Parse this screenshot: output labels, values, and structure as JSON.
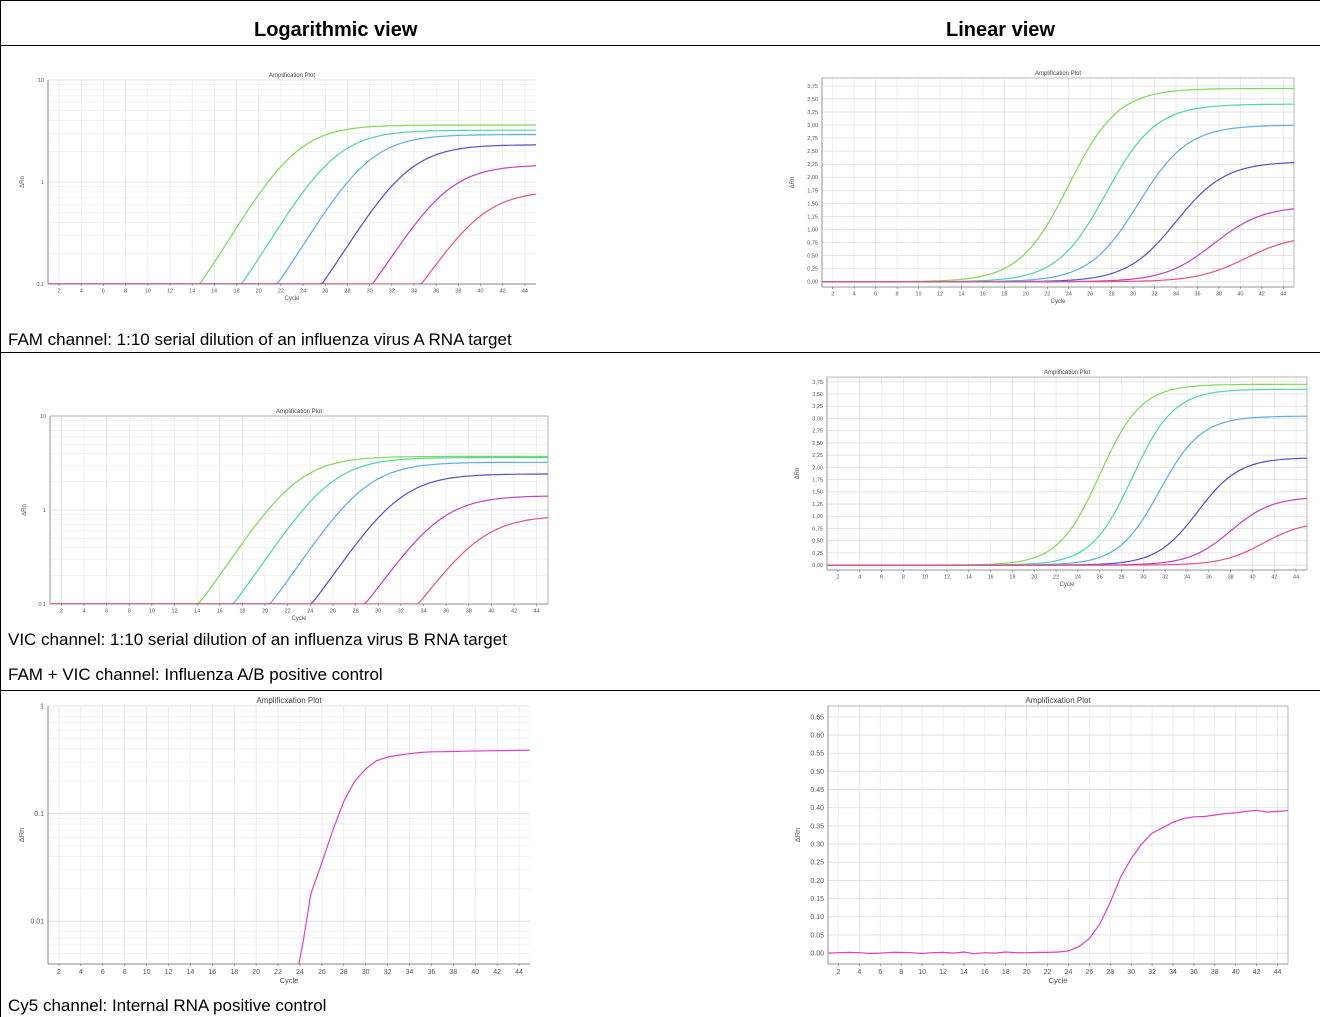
{
  "table": {
    "header_left": "Logarithmic view",
    "header_right": "Linear view",
    "captions": [
      "FAM channel: 1:10 serial dilution of an influenza virus A RNA target",
      "VIC channel: 1:10 serial dilution of an influenza virus B RNA target",
      "FAM + VIC channel: Influenza A/B positive control",
      "Cy5 channel: Internal RNA positive control"
    ]
  },
  "chart_data": [
    {
      "id": "fam_log",
      "type": "line",
      "scale": "log",
      "title": "Amplification Plot",
      "xlabel": "Cycle",
      "ylabel": "ΔRn",
      "xlim": [
        1,
        45
      ],
      "ylim": [
        0.1,
        10
      ],
      "xticks": [
        2,
        4,
        6,
        8,
        10,
        12,
        14,
        16,
        18,
        20,
        22,
        24,
        26,
        28,
        30,
        32,
        34,
        36,
        38,
        40,
        42,
        44
      ],
      "yticks": [
        0.1,
        1,
        10
      ],
      "ytick_labels": [
        "0.1",
        "1",
        "10"
      ],
      "grid": true,
      "series": [
        {
          "color": "#7ed957",
          "midpoint": 23.0,
          "plateau": 3.6,
          "slope": 2.2
        },
        {
          "color": "#4fd6a4",
          "midpoint": 26.5,
          "plateau": 3.2,
          "slope": 2.2
        },
        {
          "color": "#5aaee8",
          "midpoint": 29.5,
          "plateau": 2.9,
          "slope": 2.2
        },
        {
          "color": "#5151c8",
          "midpoint": 33.0,
          "plateau": 2.3,
          "slope": 2.2
        },
        {
          "color": "#c43fc4",
          "midpoint": 36.5,
          "plateau": 1.45,
          "slope": 2.2
        },
        {
          "color": "#e8508a",
          "midpoint": 39.5,
          "plateau": 0.8,
          "slope": 2.2
        }
      ]
    },
    {
      "id": "fam_lin",
      "type": "line",
      "scale": "linear",
      "title": "Amplification Plot",
      "xlabel": "Cycle",
      "ylabel": "ΔRn",
      "xlim": [
        1,
        45
      ],
      "ylim": [
        -0.1,
        3.9
      ],
      "xticks": [
        2,
        4,
        6,
        8,
        10,
        12,
        14,
        16,
        18,
        20,
        22,
        24,
        26,
        28,
        30,
        32,
        34,
        36,
        38,
        40,
        42,
        44
      ],
      "yticks": [
        0,
        0.25,
        0.5,
        0.75,
        1,
        1.25,
        1.5,
        1.75,
        2,
        2.25,
        2.5,
        2.75,
        3,
        3.25,
        3.5,
        3.75
      ],
      "ytick_labels": [
        "0,00",
        "0,25",
        "0,50",
        "0,75",
        "1,00",
        "1,25",
        "1,50",
        "1,75",
        "2,00",
        "2,25",
        "2,50",
        "2,75",
        "3,00",
        "3,25",
        "3,50",
        "3,75"
      ],
      "grid": true,
      "series": [
        {
          "color": "#7ed957",
          "midpoint": 24.0,
          "plateau": 3.7,
          "slope": 2.3
        },
        {
          "color": "#4fd6a4",
          "midpoint": 27.5,
          "plateau": 3.4,
          "slope": 2.3
        },
        {
          "color": "#5aaee8",
          "midpoint": 30.5,
          "plateau": 3.0,
          "slope": 2.3
        },
        {
          "color": "#5151c8",
          "midpoint": 34.0,
          "plateau": 2.3,
          "slope": 2.3
        },
        {
          "color": "#c43fc4",
          "midpoint": 37.5,
          "plateau": 1.45,
          "slope": 2.3
        },
        {
          "color": "#e8508a",
          "midpoint": 40.5,
          "plateau": 0.9,
          "slope": 2.3
        }
      ]
    },
    {
      "id": "vic_log",
      "type": "line",
      "scale": "log",
      "title": "Amplification Plot",
      "xlabel": "Cycle",
      "ylabel": "ΔRn",
      "xlim": [
        1,
        45
      ],
      "ylim": [
        0.1,
        10
      ],
      "xticks": [
        2,
        4,
        6,
        8,
        10,
        12,
        14,
        16,
        18,
        20,
        22,
        24,
        26,
        28,
        30,
        32,
        34,
        36,
        38,
        40,
        42,
        44
      ],
      "yticks": [
        0.1,
        1,
        10
      ],
      "ytick_labels": [
        "0.1",
        "1",
        "10"
      ],
      "grid": true,
      "series": [
        {
          "color": "#7ed957",
          "midpoint": 22.5,
          "plateau": 3.7,
          "slope": 2.2
        },
        {
          "color": "#4fd6a4",
          "midpoint": 25.5,
          "plateau": 3.6,
          "slope": 2.2
        },
        {
          "color": "#5aaee8",
          "midpoint": 28.5,
          "plateau": 3.2,
          "slope": 2.2
        },
        {
          "color": "#5151c8",
          "midpoint": 31.5,
          "plateau": 2.4,
          "slope": 2.2
        },
        {
          "color": "#c43fc4",
          "midpoint": 35.0,
          "plateau": 1.4,
          "slope": 2.2
        },
        {
          "color": "#e8508a",
          "midpoint": 38.5,
          "plateau": 0.85,
          "slope": 2.2
        }
      ]
    },
    {
      "id": "vic_lin",
      "type": "line",
      "scale": "linear",
      "title": "Amplification Plot",
      "xlabel": "Cycle",
      "ylabel": "ΔRn",
      "xlim": [
        1,
        45
      ],
      "ylim": [
        -0.1,
        3.85
      ],
      "xticks": [
        2,
        4,
        6,
        8,
        10,
        12,
        14,
        16,
        18,
        20,
        22,
        24,
        26,
        28,
        30,
        32,
        34,
        36,
        38,
        40,
        42,
        44
      ],
      "yticks": [
        0,
        0.25,
        0.5,
        0.75,
        1,
        1.25,
        1.5,
        1.75,
        2,
        2.25,
        2.5,
        2.75,
        3,
        3.25,
        3.5,
        3.75
      ],
      "ytick_labels": [
        "0,00",
        "0,25",
        "0,50",
        "0,75",
        "1,00",
        "1,25",
        "1,50",
        "1,75",
        "2,00",
        "2,25",
        "2,50",
        "2,75",
        "3,00",
        "3,25",
        "3,50",
        "3,75"
      ],
      "grid": true,
      "series": [
        {
          "color": "#7ed957",
          "midpoint": 26.0,
          "plateau": 3.7,
          "slope": 1.9
        },
        {
          "color": "#4fd6a4",
          "midpoint": 29.0,
          "plateau": 3.6,
          "slope": 1.9
        },
        {
          "color": "#5aaee8",
          "midpoint": 31.5,
          "plateau": 3.05,
          "slope": 1.9
        },
        {
          "color": "#5151c8",
          "midpoint": 35.0,
          "plateau": 2.2,
          "slope": 1.9
        },
        {
          "color": "#c43fc4",
          "midpoint": 38.0,
          "plateau": 1.4,
          "slope": 1.9
        },
        {
          "color": "#e8508a",
          "midpoint": 41.0,
          "plateau": 0.9,
          "slope": 1.9
        }
      ]
    },
    {
      "id": "cy5_log",
      "type": "line",
      "scale": "log",
      "title": "Amplificxation Plot",
      "xlabel": "Cycle",
      "ylabel": "ΔRn",
      "xlim": [
        1,
        45
      ],
      "ylim": [
        0.004,
        1
      ],
      "xticks": [
        2,
        4,
        6,
        8,
        10,
        12,
        14,
        16,
        18,
        20,
        22,
        24,
        26,
        28,
        30,
        32,
        34,
        36,
        38,
        40,
        42,
        44
      ],
      "yticks": [
        0.01,
        0.1,
        1
      ],
      "ytick_labels": [
        "0.01",
        "0.1",
        "1"
      ],
      "grid": true,
      "series": [
        {
          "color": "#e040c8",
          "x": [
            23.9,
            24.3,
            25,
            26,
            27,
            28,
            29,
            30,
            31,
            32,
            33,
            34,
            35,
            36,
            37,
            38,
            39,
            40,
            41,
            42,
            43,
            44,
            45
          ],
          "y": [
            0.004,
            0.0065,
            0.018,
            0.035,
            0.07,
            0.13,
            0.2,
            0.26,
            0.31,
            0.335,
            0.35,
            0.36,
            0.37,
            0.375,
            0.376,
            0.378,
            0.38,
            0.382,
            0.383,
            0.385,
            0.386,
            0.387,
            0.388
          ]
        }
      ]
    },
    {
      "id": "cy5_lin",
      "type": "line",
      "scale": "linear",
      "title": "Amplificxation Plot",
      "xlabel": "Cycle",
      "ylabel": "ΔRn",
      "xlim": [
        1,
        45
      ],
      "ylim": [
        -0.03,
        0.68
      ],
      "xticks": [
        2,
        4,
        6,
        8,
        10,
        12,
        14,
        16,
        18,
        20,
        22,
        24,
        26,
        28,
        30,
        32,
        34,
        36,
        38,
        40,
        42,
        44
      ],
      "yticks": [
        0,
        0.05,
        0.1,
        0.15,
        0.2,
        0.25,
        0.3,
        0.35,
        0.4,
        0.45,
        0.5,
        0.55,
        0.6,
        0.65
      ],
      "ytick_labels": [
        "0.00",
        "0.05",
        "0.10",
        "0.15",
        "0.20",
        "0.25",
        "0.30",
        "0.35",
        "0.40",
        "0.45",
        "0.50",
        "0.55",
        "0.60",
        "0.65"
      ],
      "grid": true,
      "series": [
        {
          "color": "#e040c8",
          "x": [
            1,
            2,
            3,
            4,
            5,
            6,
            7,
            8,
            9,
            10,
            11,
            12,
            13,
            14,
            15,
            16,
            17,
            18,
            19,
            20,
            21,
            22,
            23,
            24,
            25,
            26,
            27,
            28,
            29,
            30,
            31,
            32,
            33,
            34,
            35,
            36,
            37,
            38,
            39,
            40,
            41,
            42,
            43,
            44,
            45
          ],
          "y": [
            0.0,
            0.001,
            0.002,
            0.001,
            -0.001,
            0.0,
            0.002,
            0.002,
            0.001,
            -0.001,
            0.001,
            0.002,
            0.0,
            0.003,
            -0.002,
            0.001,
            0.0,
            0.003,
            0.001,
            0.001,
            0.002,
            0.002,
            0.003,
            0.006,
            0.018,
            0.04,
            0.08,
            0.14,
            0.21,
            0.26,
            0.3,
            0.33,
            0.345,
            0.36,
            0.37,
            0.375,
            0.376,
            0.38,
            0.384,
            0.386,
            0.39,
            0.393,
            0.388,
            0.39,
            0.392
          ]
        }
      ]
    }
  ]
}
